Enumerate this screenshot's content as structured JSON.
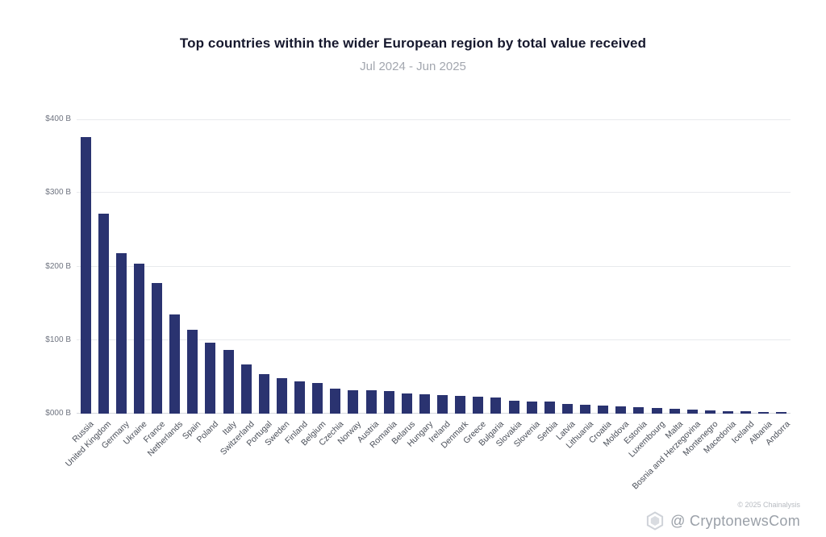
{
  "header": {
    "title": "Top countries within the wider European region by total value received",
    "subtitle": "Jul 2024 - Jun 2025"
  },
  "chart_data": {
    "type": "bar",
    "title": "Top countries within the wider European region by total value received",
    "subtitle": "Jul 2024 - Jun 2025",
    "categories": [
      "Russia",
      "United Kingdom",
      "Germany",
      "Ukraine",
      "France",
      "Netherlands",
      "Spain",
      "Poland",
      "Italy",
      "Switzerland",
      "Portugal",
      "Sweden",
      "Finland",
      "Belgium",
      "Czechia",
      "Norway",
      "Austria",
      "Romania",
      "Belarus",
      "Hungary",
      "Ireland",
      "Denmark",
      "Greece",
      "Bulgaria",
      "Slovakia",
      "Slovenia",
      "Serbia",
      "Latvia",
      "Lithuania",
      "Croatia",
      "Moldova",
      "Estonia",
      "Luxembourg",
      "Malta",
      "Bosnia and Herzegovina",
      "Montenegro",
      "Macedonia",
      "Iceland",
      "Albania",
      "Andorra"
    ],
    "values": [
      376,
      272,
      218,
      204,
      178,
      135,
      114,
      96,
      87,
      67,
      54,
      48,
      44,
      42,
      34,
      32,
      32,
      31,
      27,
      26,
      25,
      24,
      23,
      22,
      18,
      16,
      16,
      13,
      12,
      11,
      10,
      9,
      8,
      7,
      5,
      4,
      3.5,
      3,
      2,
      1
    ],
    "xlabel": "",
    "ylabel": "",
    "ylim": [
      0,
      400
    ],
    "yticks": [
      {
        "value": 0,
        "label": "$000 B"
      },
      {
        "value": 100,
        "label": "$100 B"
      },
      {
        "value": 200,
        "label": "$200 B"
      },
      {
        "value": 300,
        "label": "$300 B"
      },
      {
        "value": 400,
        "label": "$400 B"
      }
    ],
    "grid": true,
    "legend": "none",
    "bar_color": "#2a3370"
  },
  "footer": {
    "copyright": "© 2025 Chainalysis",
    "watermark": "@ CryptonewsCom"
  }
}
